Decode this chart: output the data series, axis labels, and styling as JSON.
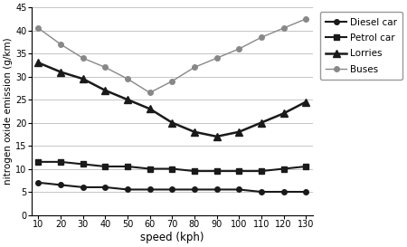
{
  "speed": [
    10,
    20,
    30,
    40,
    50,
    60,
    70,
    80,
    90,
    100,
    110,
    120,
    130
  ],
  "diesel_car": [
    7,
    6.5,
    6,
    6,
    5.5,
    5.5,
    5.5,
    5.5,
    5.5,
    5.5,
    5,
    5,
    5
  ],
  "petrol_car": [
    11.5,
    11.5,
    11,
    10.5,
    10.5,
    10,
    10,
    9.5,
    9.5,
    9.5,
    9.5,
    10,
    10.5
  ],
  "lorries": [
    33,
    31,
    29.5,
    27,
    25,
    23,
    20,
    18,
    17,
    18,
    20,
    22,
    24.5
  ],
  "buses": [
    40.5,
    37,
    34,
    32,
    29.5,
    26.5,
    29,
    32,
    34,
    36,
    38.5,
    40.5,
    42.5
  ],
  "legend": [
    "Diesel car",
    "Petrol car",
    "Lorries",
    "Buses"
  ],
  "xlabel": "speed (kph)",
  "ylabel": "nitrogen oxide emission (g/km)",
  "ylim": [
    0,
    45
  ],
  "yticks": [
    0,
    5,
    10,
    15,
    20,
    25,
    30,
    35,
    40,
    45
  ],
  "xticks": [
    10,
    20,
    30,
    40,
    50,
    60,
    70,
    80,
    90,
    100,
    110,
    120,
    130
  ],
  "colors": [
    "#1a1a1a",
    "#1a1a1a",
    "#1a1a1a",
    "#888888"
  ],
  "markers": [
    "o",
    "s",
    "^",
    "o"
  ],
  "markersizes": [
    4,
    5,
    6,
    4
  ],
  "linewidths": [
    1.5,
    1.5,
    1.8,
    1.0
  ],
  "background_color": "#ffffff",
  "grid_color": "#bbbbbb"
}
